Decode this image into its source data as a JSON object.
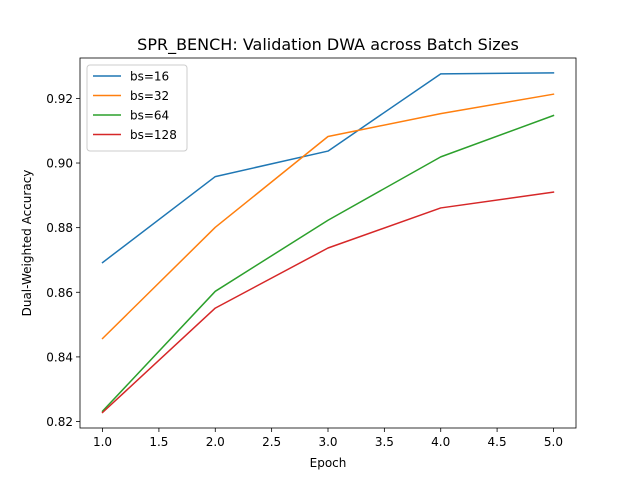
{
  "chart_data": {
    "type": "line",
    "title": "SPR_BENCH: Validation DWA across Batch Sizes",
    "xlabel": "Epoch",
    "ylabel": "Dual-Weighted Accuracy",
    "xlim": [
      0.8,
      5.2
    ],
    "ylim": [
      0.818,
      0.9325
    ],
    "xticks": [
      1.0,
      1.5,
      2.0,
      2.5,
      3.0,
      3.5,
      4.0,
      4.5,
      5.0
    ],
    "xtick_labels": [
      "1.0",
      "1.5",
      "2.0",
      "2.5",
      "3.0",
      "3.5",
      "4.0",
      "4.5",
      "5.0"
    ],
    "yticks": [
      0.82,
      0.84,
      0.86,
      0.88,
      0.9,
      0.92
    ],
    "ytick_labels": [
      "0.82",
      "0.84",
      "0.86",
      "0.88",
      "0.90",
      "0.92"
    ],
    "grid": false,
    "legend_position": "top-left",
    "x": [
      1,
      2,
      3,
      4,
      5
    ],
    "series": [
      {
        "name": "bs=16",
        "color": "#1f77b4",
        "values": [
          0.8692,
          0.8958,
          0.9037,
          0.9276,
          0.9279
        ]
      },
      {
        "name": "bs=32",
        "color": "#ff7f0e",
        "values": [
          0.8457,
          0.8801,
          0.9082,
          0.9153,
          0.9213
        ]
      },
      {
        "name": "bs=64",
        "color": "#2ca02c",
        "values": [
          0.8232,
          0.8603,
          0.8823,
          0.9019,
          0.9147
        ]
      },
      {
        "name": "bs=128",
        "color": "#d62728",
        "values": [
          0.8228,
          0.8551,
          0.8737,
          0.8861,
          0.891
        ]
      }
    ]
  }
}
